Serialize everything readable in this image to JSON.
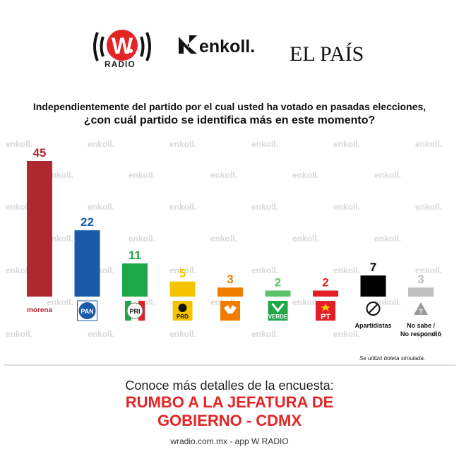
{
  "header": {
    "wradio_label": "RADIO",
    "enkoll_label": "enkoll.",
    "elpais_label": "EL PAÍS"
  },
  "question": {
    "line1": "Independientemente del partido por el cual usted ha votado en pasadas elecciones,",
    "line2": "¿con cuál partido se identifica más en este momento?"
  },
  "watermark": "enkoll.",
  "chart_data": {
    "type": "bar",
    "categories": [
      "Morena",
      "PAN",
      "PRI",
      "PRD",
      "MC",
      "Verde",
      "PT",
      "Apartidistas",
      "No sabe / No respondió"
    ],
    "values": [
      45,
      22,
      11,
      5,
      3,
      2,
      2,
      7,
      3
    ],
    "colors": [
      "#b0282f",
      "#1a5aa8",
      "#1fa84a",
      "#f5c400",
      "#f07d00",
      "#5cc26a",
      "#e21e26",
      "#000000",
      "#bfbfbf"
    ],
    "ylim": [
      0,
      50
    ],
    "grid": false,
    "legend": "none",
    "logo_labels": [
      "morena",
      "PAN",
      "PRI",
      "PRD",
      "",
      "VERDE",
      "PT",
      "",
      ""
    ],
    "text_labels": [
      "",
      "",
      "",
      "",
      "",
      "",
      "",
      "Apartidistas",
      "No sabe /|No respondió"
    ]
  },
  "footnote": "Se utilizó boleta simulada.",
  "cta": {
    "line1": "Conoce más detalles de la encuesta:",
    "line2": "RUMBO A LA JEFATURA DE",
    "line3": "GOBIERNO - CDMX"
  },
  "website": "wradio.com.mx - app W RADIO"
}
